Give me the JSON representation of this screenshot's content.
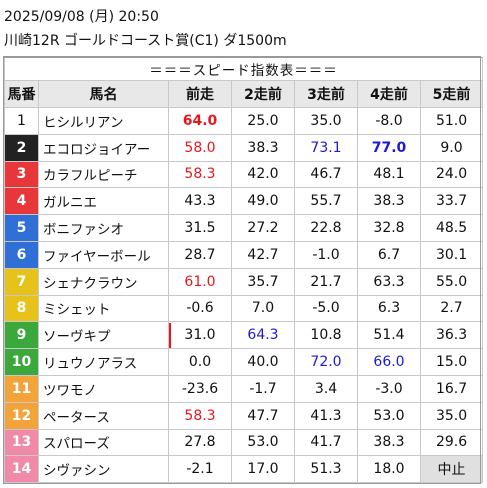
{
  "header": {
    "line1": "2025/09/08 (月) 20:50",
    "line2": "川崎12R ゴールドコースト賞(C1) ダ1500m"
  },
  "table": {
    "title": "＝＝＝スピード指数表＝＝＝",
    "columns": [
      "馬番",
      "馬名",
      "前走",
      "2走前",
      "3走前",
      "4走前",
      "5走前"
    ],
    "rows": [
      {
        "num": "1",
        "num_bg": "#ffffff",
        "num_fg": "#111111",
        "name": "ヒシルリアン",
        "v": [
          "64.0",
          "25.0",
          "35.0",
          "-8.0",
          "51.0"
        ],
        "styles": [
          "red bold",
          "",
          "",
          "",
          ""
        ]
      },
      {
        "num": "2",
        "num_bg": "#222222",
        "num_fg": "#ffffff",
        "name": "エコロジョイアー",
        "v": [
          "58.0",
          "38.3",
          "73.1",
          "77.0",
          "9.0"
        ],
        "styles": [
          "red",
          "",
          "blue",
          "blue bold",
          ""
        ]
      },
      {
        "num": "3",
        "num_bg": "#e8373a",
        "num_fg": "#ffffff",
        "name": "カラフルピーチ",
        "v": [
          "58.3",
          "42.0",
          "46.7",
          "48.1",
          "24.0"
        ],
        "styles": [
          "red",
          "",
          "",
          "",
          ""
        ]
      },
      {
        "num": "4",
        "num_bg": "#e8373a",
        "num_fg": "#ffffff",
        "name": "ガルニエ",
        "v": [
          "43.3",
          "49.0",
          "55.7",
          "38.3",
          "33.7"
        ],
        "styles": [
          "",
          "",
          "",
          "",
          ""
        ]
      },
      {
        "num": "5",
        "num_bg": "#2f6fd6",
        "num_fg": "#ffffff",
        "name": "ボニファシオ",
        "v": [
          "31.5",
          "27.2",
          "22.8",
          "32.8",
          "48.5"
        ],
        "styles": [
          "",
          "",
          "",
          "",
          ""
        ]
      },
      {
        "num": "6",
        "num_bg": "#2f6fd6",
        "num_fg": "#ffffff",
        "name": "ファイヤーボール",
        "v": [
          "28.7",
          "42.7",
          "-1.0",
          "6.7",
          "30.1"
        ],
        "styles": [
          "",
          "",
          "",
          "",
          ""
        ]
      },
      {
        "num": "7",
        "num_bg": "#e6c21a",
        "num_fg": "#ffffff",
        "name": "シェナクラウン",
        "v": [
          "61.0",
          "35.7",
          "21.7",
          "63.3",
          "55.0"
        ],
        "styles": [
          "red",
          "",
          "",
          "",
          ""
        ]
      },
      {
        "num": "8",
        "num_bg": "#e6c21a",
        "num_fg": "#ffffff",
        "name": "ミシェット",
        "v": [
          "-0.6",
          "7.0",
          "-5.0",
          "6.3",
          "2.7"
        ],
        "styles": [
          "",
          "",
          "",
          "",
          ""
        ]
      },
      {
        "num": "9",
        "num_bg": "#3aa83a",
        "num_fg": "#ffffff",
        "name": "ソーヴキプ",
        "v": [
          "31.0",
          "64.3",
          "10.8",
          "51.4",
          "36.3"
        ],
        "styles": [
          "",
          "blue",
          "",
          "",
          ""
        ]
      },
      {
        "num": "10",
        "num_bg": "#3aa83a",
        "num_fg": "#ffffff",
        "name": "リュウノアラス",
        "v": [
          "0.0",
          "40.0",
          "72.0",
          "66.0",
          "15.0"
        ],
        "styles": [
          "",
          "",
          "blue",
          "blue",
          ""
        ]
      },
      {
        "num": "11",
        "num_bg": "#f2a33a",
        "num_fg": "#ffffff",
        "name": "ツワモノ",
        "v": [
          "-23.6",
          "-1.7",
          "3.4",
          "-3.0",
          "16.7"
        ],
        "styles": [
          "",
          "",
          "",
          "",
          ""
        ]
      },
      {
        "num": "12",
        "num_bg": "#f2a33a",
        "num_fg": "#ffffff",
        "name": "ペータース",
        "v": [
          "58.3",
          "47.7",
          "41.3",
          "53.0",
          "35.0"
        ],
        "styles": [
          "red",
          "",
          "",
          "",
          ""
        ]
      },
      {
        "num": "13",
        "num_bg": "#f08aa8",
        "num_fg": "#ffffff",
        "name": "スパローズ",
        "v": [
          "27.8",
          "53.0",
          "41.7",
          "38.3",
          "29.6"
        ],
        "styles": [
          "",
          "",
          "",
          "",
          ""
        ]
      },
      {
        "num": "14",
        "num_bg": "#f08aa8",
        "num_fg": "#ffffff",
        "name": "シヴァシン",
        "v": [
          "-2.1",
          "17.0",
          "51.3",
          "18.0",
          "中止"
        ],
        "styles": [
          "",
          "",
          "",
          "",
          "gray"
        ]
      }
    ]
  }
}
